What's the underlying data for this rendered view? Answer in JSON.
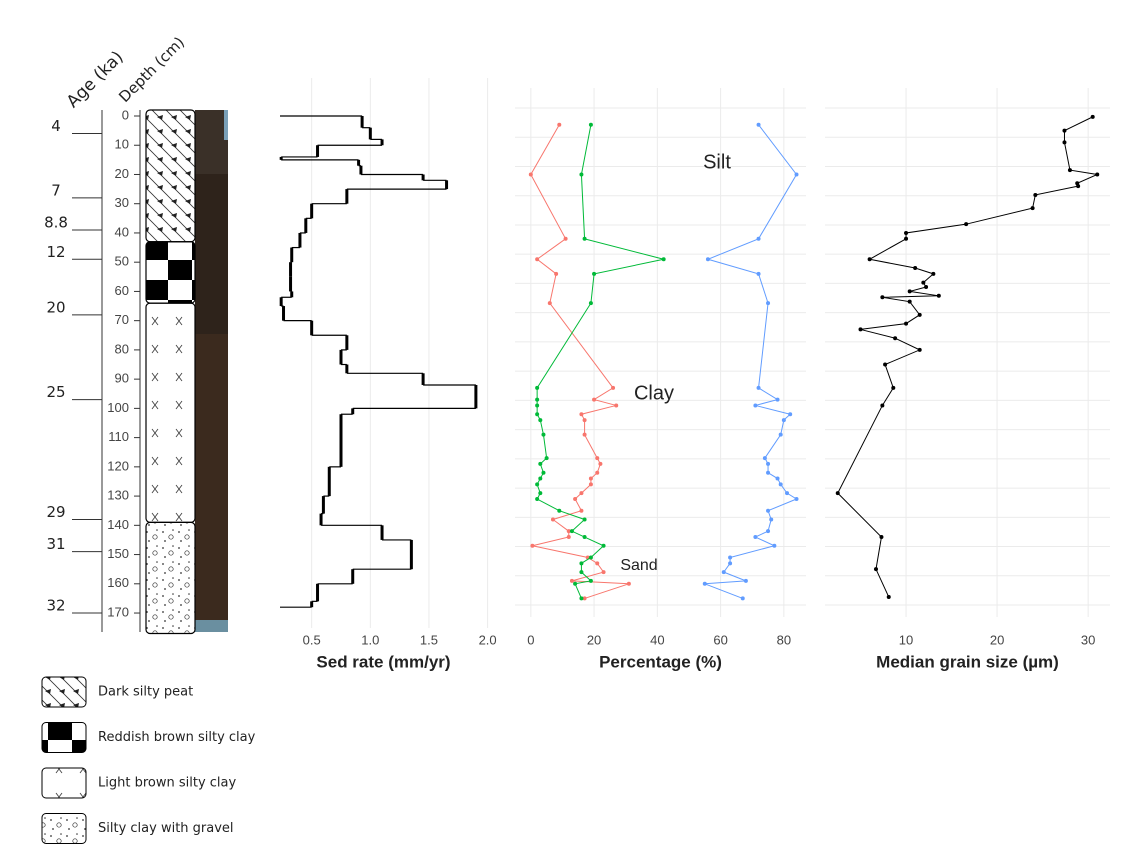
{
  "axis_titles": {
    "age": "Age (ka)",
    "depth": "Depth (cm)"
  },
  "depth_axis": {
    "ylim": [
      0,
      177
    ],
    "yticks": [
      0,
      10,
      20,
      30,
      40,
      50,
      60,
      70,
      80,
      90,
      100,
      110,
      120,
      130,
      140,
      150,
      160,
      170
    ]
  },
  "age_labels": [
    {
      "age": 4,
      "depth": 6
    },
    {
      "age": 7,
      "depth": 28
    },
    {
      "age": 8.8,
      "depth": 39
    },
    {
      "age": 12,
      "depth": 49
    },
    {
      "age": 20,
      "depth": 68
    },
    {
      "age": 25,
      "depth": 97
    },
    {
      "age": 29,
      "depth": 138
    },
    {
      "age": 31,
      "depth": 149
    },
    {
      "age": 32,
      "depth": 170
    }
  ],
  "lithology": [
    {
      "name": "Dark silty peat",
      "top": 0,
      "bottom": 43
    },
    {
      "name": "Reddish brown silty clay",
      "top": 43,
      "bottom": 64
    },
    {
      "name": "Light brown silty clay",
      "top": 64,
      "bottom": 139
    },
    {
      "name": "Silty clay with gravel",
      "top": 139,
      "bottom": 177
    }
  ],
  "chart_data": [
    {
      "type": "step",
      "xlabel": "Sed rate (mm/yr)",
      "color": "#000000",
      "depth_edges": [
        0,
        4,
        8,
        10,
        14,
        15,
        17,
        20,
        22,
        25,
        30,
        35,
        40,
        45,
        50,
        55,
        60,
        62,
        65,
        70,
        75,
        80,
        85,
        88,
        92,
        100,
        102,
        120,
        130,
        136,
        140,
        145,
        155,
        160,
        166,
        168
      ],
      "values": [
        0.93,
        1.0,
        1.1,
        0.55,
        0.24,
        0.9,
        0.92,
        1.45,
        1.65,
        0.8,
        0.5,
        0.45,
        0.4,
        0.33,
        0.32,
        0.32,
        0.33,
        0.24,
        0.26,
        0.5,
        0.8,
        0.75,
        0.8,
        1.45,
        1.9,
        0.85,
        0.75,
        0.65,
        0.6,
        0.58,
        1.1,
        1.35,
        0.85,
        0.55,
        0.5
      ],
      "xlim": [
        0.23,
        2.08
      ],
      "xticks": [
        0.5,
        {
          "value": 1,
          "label": "1.0"
        },
        1.5,
        {
          "value": 2,
          "label": "2.0"
        }
      ],
      "grid": true
    },
    {
      "type": "line",
      "xlabel": "Percentage (%)",
      "depth": [
        3,
        20,
        42,
        49,
        54,
        64,
        93,
        97,
        99,
        102,
        104,
        109,
        117,
        119,
        122,
        124,
        126,
        129,
        131,
        135,
        138,
        142,
        144,
        147,
        151,
        153,
        156,
        159,
        160,
        165
      ],
      "series": [
        {
          "name": "Sand",
          "color": "#f8766d",
          "label_color": "#ff0000",
          "values": [
            9,
            0,
            11,
            2,
            8,
            6,
            26,
            20,
            27,
            16,
            17,
            17,
            21,
            22,
            21,
            19,
            19,
            16,
            14,
            16,
            7,
            12,
            12,
            0.5,
            18,
            21,
            23,
            13,
            31,
            17
          ]
        },
        {
          "name": "Silt",
          "color": "#619cff",
          "label_color": "#0000ff",
          "values": [
            72,
            84,
            72,
            56,
            72,
            75,
            72,
            78,
            71,
            82,
            80,
            79,
            74,
            75,
            75,
            78,
            79,
            81,
            84,
            75,
            76,
            75,
            71,
            77,
            63,
            63,
            61,
            68,
            55,
            67
          ]
        },
        {
          "name": "Clay",
          "color": "#00ba38",
          "label_color": "#00dd00",
          "values": [
            19,
            16,
            17,
            42,
            20,
            19,
            2,
            2,
            2,
            2,
            3,
            4,
            5,
            3,
            4,
            3,
            2,
            3,
            2,
            9,
            17,
            13,
            17,
            23,
            19,
            16,
            16,
            19,
            14,
            16
          ]
        }
      ],
      "xlim": [
        -5,
        87
      ],
      "xticks": [
        0,
        20,
        40,
        60,
        80
      ],
      "grid": true
    },
    {
      "type": "line",
      "xlabel": "Median grain size (µm)",
      "color": "#000000",
      "depth": [
        0.3,
        5,
        9,
        18.5,
        20,
        23,
        24,
        27,
        31.5,
        37,
        40,
        42,
        49,
        52,
        54,
        57,
        58.5,
        60,
        61.5,
        62,
        63.5,
        68,
        71,
        73,
        76,
        80,
        85,
        93,
        99,
        129,
        144,
        155,
        164.5
      ],
      "values": [
        30.5,
        27.4,
        27.4,
        28,
        31,
        28.8,
        28.9,
        24.2,
        23.9,
        16.6,
        10,
        10,
        6,
        11,
        13,
        11.9,
        12.2,
        10.4,
        13.6,
        7.4,
        10.4,
        11.5,
        10,
        5,
        8.8,
        11.5,
        7.7,
        8.6,
        7.4,
        2.5,
        7.3,
        6.7,
        8.1
      ],
      "xlim": [
        1.1,
        32.4
      ],
      "xticks": [
        10,
        20,
        30
      ],
      "grid": true
    }
  ]
}
